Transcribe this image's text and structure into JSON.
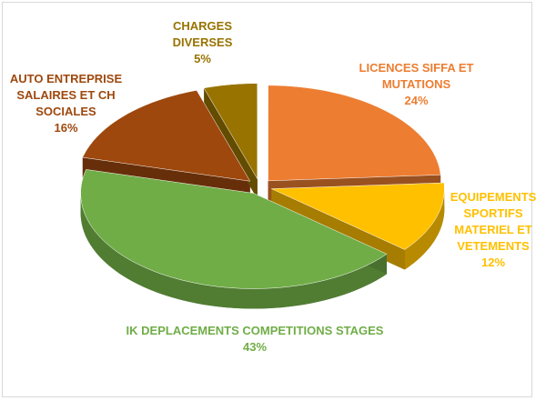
{
  "chart_data": {
    "type": "pie",
    "categories": [
      "LICENCES SIFFA ET MUTATIONS",
      "EQUIPEMENTS SPORTIFS MATERIEL ET VETEMENTS",
      "IK DEPLACEMENTS COMPETITIONS STAGES",
      "AUTO ENTREPRISE SALAIRES ET CH SOCIALES",
      "CHARGES DIVERSES"
    ],
    "values": [
      24,
      12,
      43,
      16,
      5
    ],
    "value_labels": [
      "24%",
      "12%",
      "43%",
      "16%",
      "5%"
    ],
    "colors": [
      "#ED7D31",
      "#FFC000",
      "#70AD47",
      "#9E480E",
      "#997300"
    ]
  }
}
